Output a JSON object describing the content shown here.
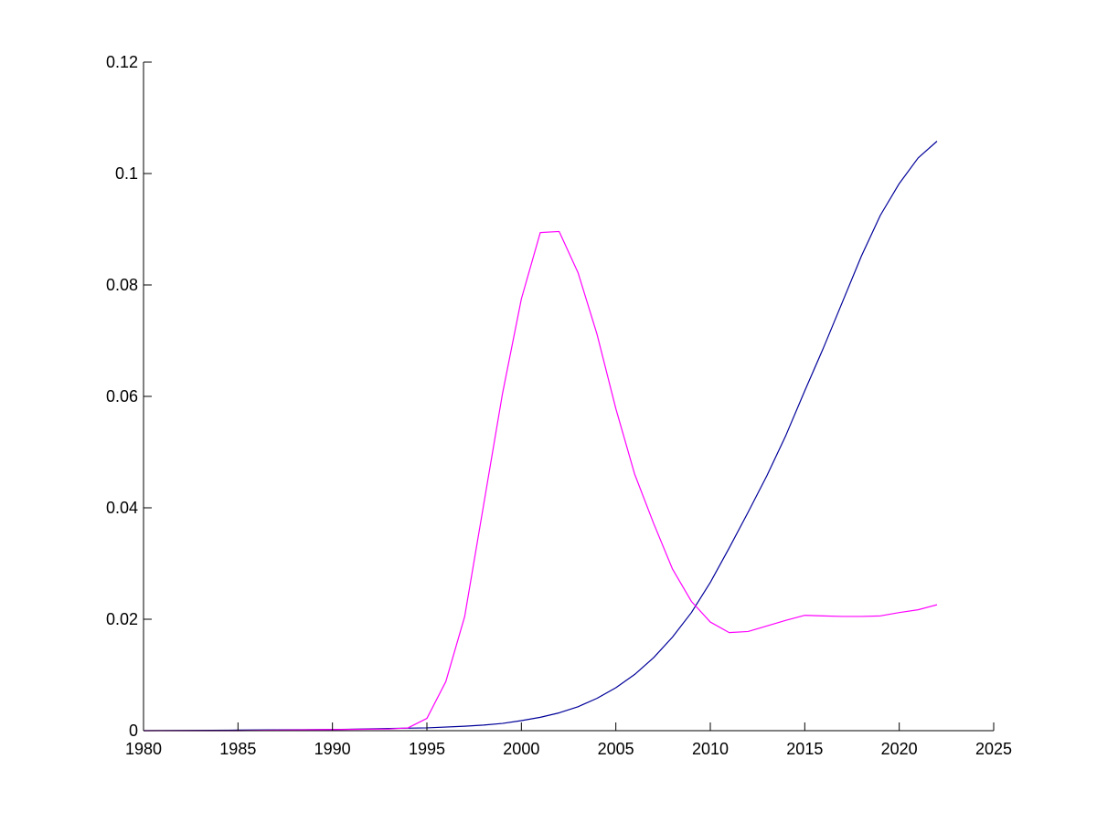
{
  "chart_data": {
    "type": "line",
    "title": "",
    "xlabel": "",
    "ylabel": "",
    "xlim": [
      1980,
      2025
    ],
    "ylim": [
      0,
      0.12
    ],
    "grid": false,
    "legend": "none",
    "xticks": [
      {
        "value": 1980,
        "label": "1980"
      },
      {
        "value": 1985,
        "label": "1985"
      },
      {
        "value": 1990,
        "label": "1990"
      },
      {
        "value": 1995,
        "label": "1995"
      },
      {
        "value": 2000,
        "label": "2000"
      },
      {
        "value": 2005,
        "label": "2005"
      },
      {
        "value": 2010,
        "label": "2010"
      },
      {
        "value": 2015,
        "label": "2015"
      },
      {
        "value": 2020,
        "label": "2020"
      },
      {
        "value": 2025,
        "label": "2025"
      }
    ],
    "yticks": [
      {
        "value": 0,
        "label": "0"
      },
      {
        "value": 0.02,
        "label": "0.02"
      },
      {
        "value": 0.04,
        "label": "0.04"
      },
      {
        "value": 0.06,
        "label": "0.06"
      },
      {
        "value": 0.08,
        "label": "0.08"
      },
      {
        "value": 0.1,
        "label": "0.1"
      },
      {
        "value": 0.12,
        "label": "0.12"
      }
    ],
    "series": [
      {
        "color": "#000099",
        "x": [
          1980,
          1985,
          1990,
          1993,
          1995,
          1997,
          1998,
          1999,
          2000,
          2001,
          2002,
          2003,
          2004,
          2005,
          2006,
          2007,
          2008,
          2009,
          2010,
          2011,
          2012,
          2013,
          2014,
          2015,
          2016,
          2017,
          2018,
          2019,
          2020,
          2021,
          2022
        ],
        "y": [
          0,
          0.0001,
          0.0002,
          0.0004,
          0.0005,
          0.0008,
          0.001,
          0.0013,
          0.0018,
          0.0024,
          0.0032,
          0.0043,
          0.0058,
          0.0077,
          0.0101,
          0.0131,
          0.0168,
          0.0212,
          0.0266,
          0.0328,
          0.0392,
          0.0458,
          0.053,
          0.061,
          0.0688,
          0.077,
          0.0852,
          0.0925,
          0.0982,
          0.1028,
          0.1058
        ]
      },
      {
        "color": "#FF00FF",
        "x": [
          1980,
          1985,
          1990,
          1993,
          1994,
          1995,
          1996,
          1997,
          1998,
          1999,
          2000,
          2001,
          2002,
          2003,
          2004,
          2005,
          2006,
          2007,
          2008,
          2009,
          2010,
          2011,
          2012,
          2013,
          2014,
          2015,
          2016,
          2017,
          2018,
          2019,
          2020,
          2021,
          2022
        ],
        "y": [
          0,
          0,
          0.0002,
          0.0003,
          0.0005,
          0.0022,
          0.0088,
          0.0205,
          0.0405,
          0.0605,
          0.0775,
          0.0894,
          0.0896,
          0.0822,
          0.0712,
          0.0578,
          0.046,
          0.0372,
          0.029,
          0.0232,
          0.0195,
          0.0176,
          0.0178,
          0.0188,
          0.0198,
          0.0207,
          0.0206,
          0.0205,
          0.0205,
          0.0206,
          0.0212,
          0.0217,
          0.0226
        ]
      }
    ]
  }
}
